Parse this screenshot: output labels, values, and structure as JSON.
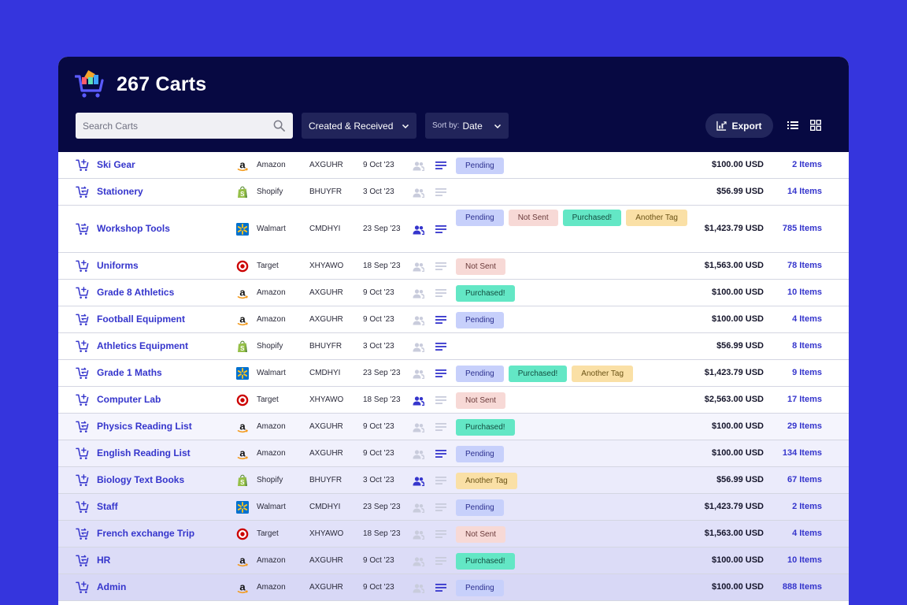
{
  "header": {
    "title": "267 Carts",
    "search_placeholder": "Search Carts",
    "filter_label": "Created & Received",
    "sort_prefix": "Sort by:",
    "sort_value": "Date",
    "export_label": "Export"
  },
  "colors": {
    "background": "#3535dd",
    "header": "#070942",
    "accent": "#3535cc",
    "tag_pending": "#c7d0fb",
    "tag_not_sent": "#f7d9d6",
    "tag_purchased": "#63e7c5",
    "tag_another": "#fae0a6"
  },
  "rows": [
    {
      "name": "Ski Gear",
      "cart_icon": "cart-add-icon",
      "store": "Amazon",
      "code": "AXGUHR",
      "date": "9 Oct '23",
      "shared": false,
      "notes": true,
      "tags": [
        "Pending"
      ],
      "price": "$100.00 USD",
      "items": "2 Items",
      "highlight": 0
    },
    {
      "name": "Stationery",
      "cart_icon": "cart-sync-icon",
      "store": "Shopify",
      "code": "BHUYFR",
      "date": "3 Oct '23",
      "shared": false,
      "notes": false,
      "tags": [],
      "price": "$56.99 USD",
      "items": "14 Items",
      "highlight": 0
    },
    {
      "name": "Workshop Tools",
      "cart_icon": "cart-sync-icon",
      "store": "Walmart",
      "code": "CMDHYI",
      "date": "23 Sep '23",
      "shared": true,
      "notes": true,
      "tags": [
        "Pending",
        "Not Sent",
        "Purchased!",
        "Another Tag"
      ],
      "price": "$1,423.79 USD",
      "items": "785 Items",
      "highlight": 0
    },
    {
      "name": "Uniforms",
      "cart_icon": "cart-add-icon",
      "store": "Target",
      "code": "XHYAWO",
      "date": "18 Sep '23",
      "shared": false,
      "notes": false,
      "tags": [
        "Not Sent"
      ],
      "price": "$1,563.00 USD",
      "items": "78 Items",
      "highlight": 0
    },
    {
      "name": "Grade 8 Athletics",
      "cart_icon": "cart-add-icon",
      "store": "Amazon",
      "code": "AXGUHR",
      "date": "9 Oct '23",
      "shared": false,
      "notes": false,
      "tags": [
        "Purchased!"
      ],
      "price": "$100.00 USD",
      "items": "10 Items",
      "highlight": 0
    },
    {
      "name": "Football Equipment",
      "cart_icon": "cart-sync-icon",
      "store": "Amazon",
      "code": "AXGUHR",
      "date": "9 Oct '23",
      "shared": false,
      "notes": true,
      "tags": [
        "Pending"
      ],
      "price": "$100.00 USD",
      "items": "4 Items",
      "highlight": 0
    },
    {
      "name": "Athletics Equipment",
      "cart_icon": "cart-add-icon",
      "store": "Shopify",
      "code": "BHUYFR",
      "date": "3 Oct '23",
      "shared": false,
      "notes": true,
      "tags": [],
      "price": "$56.99 USD",
      "items": "8 Items",
      "highlight": 0
    },
    {
      "name": "Grade 1 Maths",
      "cart_icon": "cart-sync-icon",
      "store": "Walmart",
      "code": "CMDHYI",
      "date": "23 Sep '23",
      "shared": false,
      "notes": true,
      "tags": [
        "Pending",
        "Purchased!",
        "Another Tag"
      ],
      "price": "$1,423.79 USD",
      "items": "9 Items",
      "highlight": 0
    },
    {
      "name": "Computer Lab",
      "cart_icon": "cart-add-icon",
      "store": "Target",
      "code": "XHYAWO",
      "date": "18 Sep '23",
      "shared": true,
      "notes": false,
      "tags": [
        "Not Sent"
      ],
      "price": "$2,563.00 USD",
      "items": "17 Items",
      "highlight": 0
    },
    {
      "name": "Physics Reading List",
      "cart_icon": "cart-sync-icon",
      "store": "Amazon",
      "code": "AXGUHR",
      "date": "9 Oct '23",
      "shared": false,
      "notes": false,
      "tags": [
        "Purchased!"
      ],
      "price": "$100.00 USD",
      "items": "29 Items",
      "highlight": 1
    },
    {
      "name": "English Reading List",
      "cart_icon": "cart-add-icon",
      "store": "Amazon",
      "code": "AXGUHR",
      "date": "9 Oct '23",
      "shared": false,
      "notes": true,
      "tags": [
        "Pending"
      ],
      "price": "$100.00 USD",
      "items": "134 Items",
      "highlight": 2
    },
    {
      "name": "Biology Text Books",
      "cart_icon": "cart-add-icon",
      "store": "Shopify",
      "code": "BHUYFR",
      "date": "3 Oct '23",
      "shared": true,
      "notes": false,
      "tags": [
        "Another Tag"
      ],
      "price": "$56.99 USD",
      "items": "67 Items",
      "highlight": 3
    },
    {
      "name": "Staff",
      "cart_icon": "cart-add-icon",
      "store": "Walmart",
      "code": "CMDHYI",
      "date": "23 Sep '23",
      "shared": false,
      "notes": false,
      "tags": [
        "Pending"
      ],
      "price": "$1,423.79 USD",
      "items": "2 Items",
      "highlight": 4
    },
    {
      "name": "French exchange Trip",
      "cart_icon": "cart-sync-icon",
      "store": "Target",
      "code": "XHYAWO",
      "date": "18 Sep '23",
      "shared": false,
      "notes": false,
      "tags": [
        "Not Sent"
      ],
      "price": "$1,563.00 USD",
      "items": "4 Items",
      "highlight": 5
    },
    {
      "name": "HR",
      "cart_icon": "cart-sync-icon",
      "store": "Amazon",
      "code": "AXGUHR",
      "date": "9 Oct '23",
      "shared": false,
      "notes": false,
      "tags": [
        "Purchased!"
      ],
      "price": "$100.00 USD",
      "items": "10 Items",
      "highlight": 6
    },
    {
      "name": "Admin",
      "cart_icon": "cart-add-icon",
      "store": "Amazon",
      "code": "AXGUHR",
      "date": "9 Oct '23",
      "shared": false,
      "notes": true,
      "tags": [
        "Pending"
      ],
      "price": "$100.00 USD",
      "items": "888 Items",
      "highlight": 7
    }
  ]
}
